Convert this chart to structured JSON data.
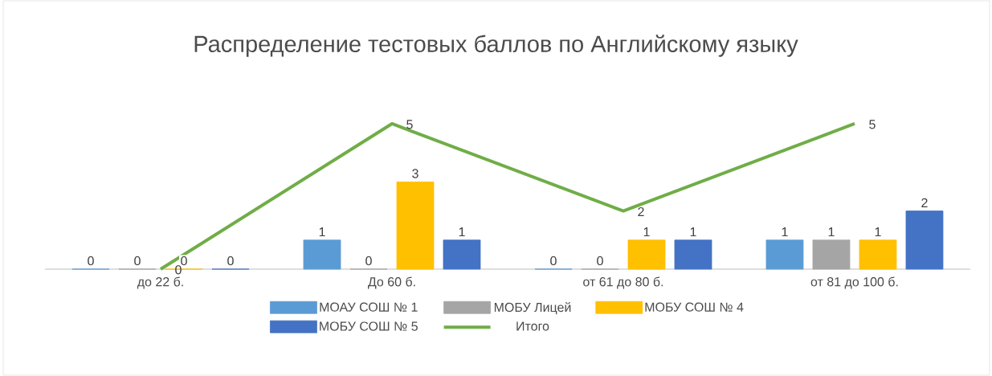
{
  "chart_data": {
    "type": "bar",
    "title": "Распределение тестовых баллов по Английскому языку",
    "categories": [
      "до 22 б.",
      "До 60 б.",
      "от 61 до 80 б.",
      "от 81 до 100 б."
    ],
    "series": [
      {
        "name": "МОАУ СОШ № 1",
        "color": "#5b9bd5",
        "values": [
          0,
          1,
          0,
          1
        ]
      },
      {
        "name": "МОБУ Лицей",
        "color": "#a5a5a5",
        "values": [
          0,
          0,
          0,
          1
        ]
      },
      {
        "name": "МОБУ СОШ № 4",
        "color": "#ffc000",
        "values": [
          0,
          3,
          1,
          1
        ]
      },
      {
        "name": "МОБУ СОШ № 5",
        "color": "#4472c4",
        "values": [
          0,
          1,
          1,
          2
        ]
      },
      {
        "name": "Итого",
        "type": "line",
        "color": "#70ad47",
        "values": [
          0,
          5,
          2,
          5
        ]
      }
    ],
    "data_labels": true,
    "legend": "bottom"
  }
}
